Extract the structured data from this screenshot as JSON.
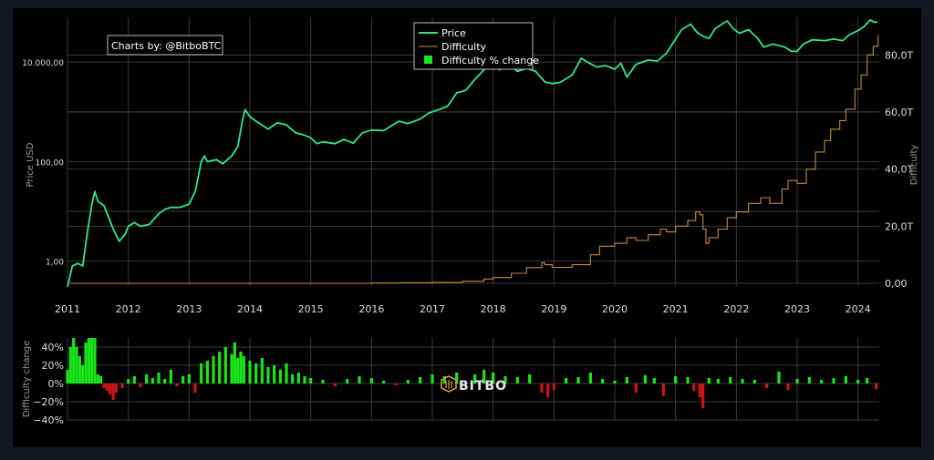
{
  "credit": "Charts by: @BitboBTC",
  "watermark": "BITBO",
  "colors": {
    "price": "#2ee88a",
    "difficulty": "#c58a3a",
    "up": "#19e619",
    "down": "#d01414",
    "grid": "#3a3a3a",
    "text": "#dddddd",
    "axis": "#999999"
  },
  "chart_data": [
    {
      "type": "line",
      "y_scale": "log",
      "xlabel": "",
      "ylabel": "Price USD",
      "y2label": "Difficulty",
      "xlim": [
        2011,
        2024.35
      ],
      "x_ticks": [
        "2011",
        "2012",
        "2013",
        "2014",
        "2015",
        "2016",
        "2017",
        "2018",
        "2019",
        "2020",
        "2021",
        "2022",
        "2023",
        "2024"
      ],
      "y_ticks": [
        "1,00",
        "100,00",
        "10.000,00"
      ],
      "y2_ticks": [
        "0,00",
        "20,0T",
        "40,0T",
        "60,0T",
        "80,0T"
      ],
      "y2lim": [
        0,
        90
      ],
      "legend": [
        "Price",
        "Difficulty",
        "Difficulty % change"
      ],
      "legend_position": "top-center",
      "series": [
        {
          "name": "Price",
          "axis": "left",
          "points": [
            [
              2011.0,
              0.3
            ],
            [
              2011.08,
              0.8
            ],
            [
              2011.17,
              0.9
            ],
            [
              2011.25,
              0.8
            ],
            [
              2011.33,
              4
            ],
            [
              2011.4,
              14
            ],
            [
              2011.45,
              25
            ],
            [
              2011.5,
              16
            ],
            [
              2011.6,
              13
            ],
            [
              2011.75,
              4.5
            ],
            [
              2011.85,
              2.5
            ],
            [
              2011.95,
              3.5
            ],
            [
              2012.0,
              5
            ],
            [
              2012.1,
              6
            ],
            [
              2012.2,
              5
            ],
            [
              2012.35,
              5.5
            ],
            [
              2012.5,
              9
            ],
            [
              2012.6,
              11
            ],
            [
              2012.7,
              12
            ],
            [
              2012.85,
              12
            ],
            [
              2013.0,
              14
            ],
            [
              2013.1,
              25
            ],
            [
              2013.2,
              100
            ],
            [
              2013.25,
              130
            ],
            [
              2013.3,
              100
            ],
            [
              2013.45,
              110
            ],
            [
              2013.55,
              90
            ],
            [
              2013.7,
              130
            ],
            [
              2013.8,
              200
            ],
            [
              2013.88,
              700
            ],
            [
              2013.92,
              1100
            ],
            [
              2014.0,
              800
            ],
            [
              2014.1,
              650
            ],
            [
              2014.3,
              450
            ],
            [
              2014.45,
              600
            ],
            [
              2014.6,
              550
            ],
            [
              2014.75,
              380
            ],
            [
              2014.9,
              340
            ],
            [
              2015.0,
              300
            ],
            [
              2015.1,
              230
            ],
            [
              2015.2,
              250
            ],
            [
              2015.4,
              230
            ],
            [
              2015.55,
              280
            ],
            [
              2015.7,
              235
            ],
            [
              2015.85,
              380
            ],
            [
              2016.0,
              430
            ],
            [
              2016.2,
              420
            ],
            [
              2016.45,
              650
            ],
            [
              2016.6,
              580
            ],
            [
              2016.8,
              720
            ],
            [
              2016.95,
              960
            ],
            [
              2017.1,
              1100
            ],
            [
              2017.25,
              1300
            ],
            [
              2017.4,
              2400
            ],
            [
              2017.55,
              2700
            ],
            [
              2017.7,
              4500
            ],
            [
              2017.85,
              7000
            ],
            [
              2017.97,
              17000
            ],
            [
              2018.05,
              10000
            ],
            [
              2018.1,
              7000
            ],
            [
              2018.25,
              9000
            ],
            [
              2018.4,
              6500
            ],
            [
              2018.55,
              7500
            ],
            [
              2018.7,
              6500
            ],
            [
              2018.85,
              4000
            ],
            [
              2018.97,
              3700
            ],
            [
              2019.1,
              3900
            ],
            [
              2019.3,
              5500
            ],
            [
              2019.45,
              12000
            ],
            [
              2019.55,
              10000
            ],
            [
              2019.7,
              8000
            ],
            [
              2019.85,
              8500
            ],
            [
              2020.0,
              7200
            ],
            [
              2020.1,
              9500
            ],
            [
              2020.2,
              5000
            ],
            [
              2020.35,
              9000
            ],
            [
              2020.55,
              11000
            ],
            [
              2020.7,
              10500
            ],
            [
              2020.85,
              15000
            ],
            [
              2021.0,
              29000
            ],
            [
              2021.1,
              45000
            ],
            [
              2021.25,
              58000
            ],
            [
              2021.35,
              40000
            ],
            [
              2021.45,
              33000
            ],
            [
              2021.55,
              30000
            ],
            [
              2021.65,
              47000
            ],
            [
              2021.8,
              62000
            ],
            [
              2021.85,
              67000
            ],
            [
              2021.95,
              47000
            ],
            [
              2022.05,
              38000
            ],
            [
              2022.2,
              45000
            ],
            [
              2022.35,
              30000
            ],
            [
              2022.45,
              20000
            ],
            [
              2022.6,
              23000
            ],
            [
              2022.8,
              20000
            ],
            [
              2022.9,
              16500
            ],
            [
              2023.0,
              16500
            ],
            [
              2023.1,
              23000
            ],
            [
              2023.25,
              28000
            ],
            [
              2023.45,
              27000
            ],
            [
              2023.6,
              29000
            ],
            [
              2023.75,
              27000
            ],
            [
              2023.85,
              35000
            ],
            [
              2024.0,
              43000
            ],
            [
              2024.1,
              52000
            ],
            [
              2024.2,
              70000
            ],
            [
              2024.28,
              63000
            ],
            [
              2024.32,
              64000
            ]
          ]
        },
        {
          "name": "Difficulty",
          "axis": "right",
          "points": [
            [
              2011.0,
              0
            ],
            [
              2016.0,
              0.1
            ],
            [
              2016.5,
              0.2
            ],
            [
              2017.0,
              0.3
            ],
            [
              2017.5,
              0.7
            ],
            [
              2017.85,
              1.5
            ],
            [
              2018.0,
              2
            ],
            [
              2018.3,
              3.5
            ],
            [
              2018.55,
              5.5
            ],
            [
              2018.8,
              7.2
            ],
            [
              2018.85,
              6.5
            ],
            [
              2018.97,
              5.6
            ],
            [
              2019.3,
              6.5
            ],
            [
              2019.6,
              10
            ],
            [
              2019.75,
              13
            ],
            [
              2020.0,
              14
            ],
            [
              2020.2,
              16
            ],
            [
              2020.35,
              15
            ],
            [
              2020.55,
              17
            ],
            [
              2020.75,
              19
            ],
            [
              2020.85,
              18
            ],
            [
              2021.0,
              20
            ],
            [
              2021.2,
              22
            ],
            [
              2021.33,
              25
            ],
            [
              2021.4,
              24
            ],
            [
              2021.45,
              19
            ],
            [
              2021.5,
              14
            ],
            [
              2021.55,
              16
            ],
            [
              2021.7,
              19
            ],
            [
              2021.85,
              23
            ],
            [
              2022.0,
              25
            ],
            [
              2022.2,
              28
            ],
            [
              2022.4,
              30
            ],
            [
              2022.55,
              28
            ],
            [
              2022.75,
              33
            ],
            [
              2022.85,
              36
            ],
            [
              2023.0,
              35
            ],
            [
              2023.15,
              40
            ],
            [
              2023.3,
              46
            ],
            [
              2023.45,
              50
            ],
            [
              2023.55,
              54
            ],
            [
              2023.7,
              57
            ],
            [
              2023.8,
              61
            ],
            [
              2023.95,
              68
            ],
            [
              2024.05,
              73
            ],
            [
              2024.15,
              80
            ],
            [
              2024.25,
              83
            ],
            [
              2024.33,
              87
            ]
          ]
        }
      ]
    },
    {
      "type": "bar",
      "xlabel": "",
      "ylabel": "Difficulty change",
      "ylim": [
        -40,
        50
      ],
      "y_ticks": [
        "40%",
        "20%",
        "0%",
        "−20%",
        "−40%"
      ],
      "series": [
        {
          "name": "Difficulty % change",
          "values": [
            [
              2011.0,
              15
            ],
            [
              2011.05,
              40
            ],
            [
              2011.1,
              50
            ],
            [
              2011.15,
              40
            ],
            [
              2011.2,
              30
            ],
            [
              2011.25,
              20
            ],
            [
              2011.3,
              45
            ],
            [
              2011.35,
              50
            ],
            [
              2011.4,
              50
            ],
            [
              2011.45,
              50
            ],
            [
              2011.5,
              10
            ],
            [
              2011.55,
              8
            ],
            [
              2011.6,
              -5
            ],
            [
              2011.65,
              -8
            ],
            [
              2011.7,
              -12
            ],
            [
              2011.75,
              -18
            ],
            [
              2011.8,
              -10
            ],
            [
              2011.9,
              -5
            ],
            [
              2012.0,
              5
            ],
            [
              2012.1,
              8
            ],
            [
              2012.2,
              -4
            ],
            [
              2012.3,
              10
            ],
            [
              2012.4,
              6
            ],
            [
              2012.5,
              12
            ],
            [
              2012.6,
              5
            ],
            [
              2012.7,
              15
            ],
            [
              2012.8,
              -3
            ],
            [
              2012.9,
              8
            ],
            [
              2013.0,
              10
            ],
            [
              2013.1,
              -10
            ],
            [
              2013.2,
              22
            ],
            [
              2013.3,
              25
            ],
            [
              2013.4,
              30
            ],
            [
              2013.5,
              35
            ],
            [
              2013.6,
              40
            ],
            [
              2013.7,
              32
            ],
            [
              2013.75,
              45
            ],
            [
              2013.8,
              28
            ],
            [
              2013.85,
              35
            ],
            [
              2013.9,
              30
            ],
            [
              2014.0,
              25
            ],
            [
              2014.1,
              22
            ],
            [
              2014.2,
              28
            ],
            [
              2014.3,
              18
            ],
            [
              2014.4,
              20
            ],
            [
              2014.5,
              15
            ],
            [
              2014.6,
              22
            ],
            [
              2014.7,
              10
            ],
            [
              2014.8,
              12
            ],
            [
              2014.9,
              8
            ],
            [
              2015.0,
              6
            ],
            [
              2015.2,
              4
            ],
            [
              2015.4,
              -3
            ],
            [
              2015.6,
              5
            ],
            [
              2015.8,
              8
            ],
            [
              2016.0,
              6
            ],
            [
              2016.2,
              3
            ],
            [
              2016.4,
              -2
            ],
            [
              2016.6,
              4
            ],
            [
              2016.8,
              7
            ],
            [
              2017.0,
              10
            ],
            [
              2017.2,
              8
            ],
            [
              2017.4,
              12
            ],
            [
              2017.55,
              -4
            ],
            [
              2017.7,
              10
            ],
            [
              2017.85,
              15
            ],
            [
              2018.0,
              12
            ],
            [
              2018.2,
              8
            ],
            [
              2018.4,
              7
            ],
            [
              2018.6,
              10
            ],
            [
              2018.8,
              -10
            ],
            [
              2018.9,
              -15
            ],
            [
              2019.0,
              -7
            ],
            [
              2019.2,
              6
            ],
            [
              2019.4,
              7
            ],
            [
              2019.6,
              12
            ],
            [
              2019.8,
              5
            ],
            [
              2020.0,
              3
            ],
            [
              2020.2,
              7
            ],
            [
              2020.35,
              -10
            ],
            [
              2020.5,
              9
            ],
            [
              2020.65,
              6
            ],
            [
              2020.8,
              -14
            ],
            [
              2021.0,
              8
            ],
            [
              2021.2,
              7
            ],
            [
              2021.3,
              -8
            ],
            [
              2021.4,
              -15
            ],
            [
              2021.45,
              -27
            ],
            [
              2021.55,
              6
            ],
            [
              2021.7,
              5
            ],
            [
              2021.9,
              7
            ],
            [
              2022.1,
              5
            ],
            [
              2022.3,
              4
            ],
            [
              2022.5,
              -5
            ],
            [
              2022.7,
              13
            ],
            [
              2022.85,
              -7
            ],
            [
              2023.0,
              5
            ],
            [
              2023.2,
              7
            ],
            [
              2023.4,
              4
            ],
            [
              2023.6,
              6
            ],
            [
              2023.8,
              8
            ],
            [
              2024.0,
              4
            ],
            [
              2024.15,
              6
            ],
            [
              2024.3,
              -6
            ]
          ]
        }
      ]
    }
  ]
}
